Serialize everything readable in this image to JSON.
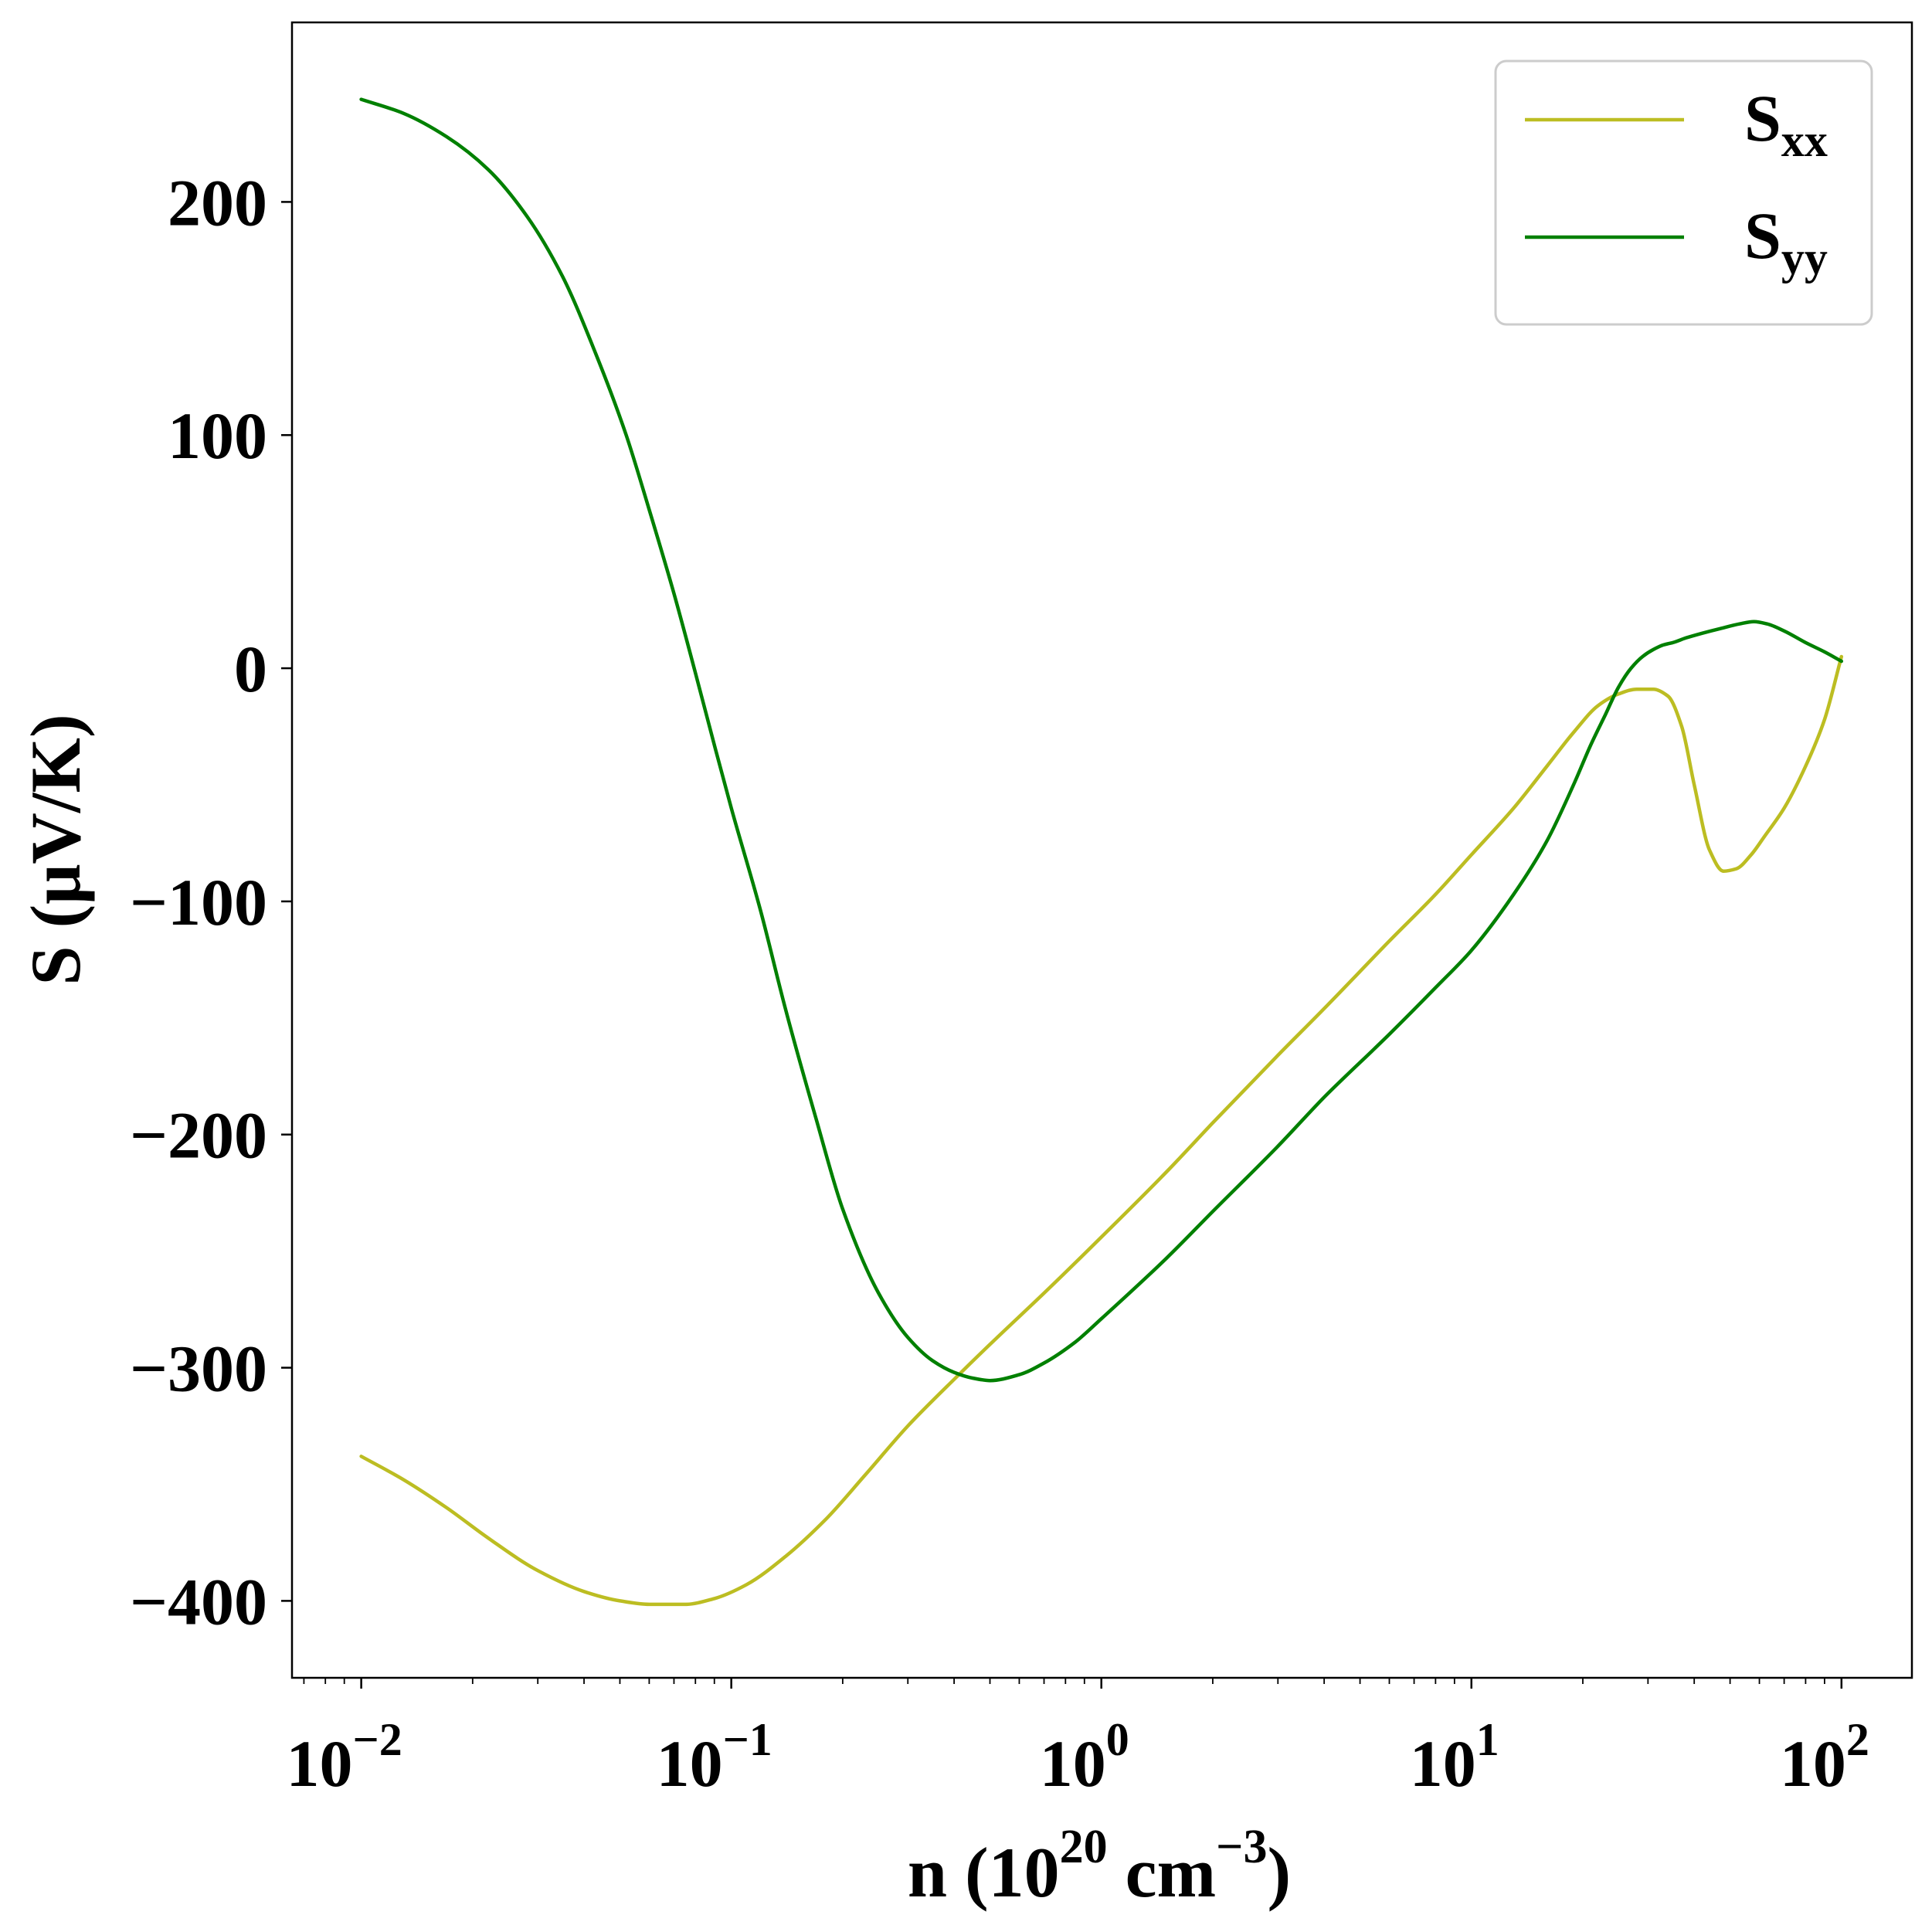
{
  "chart_data": {
    "type": "line",
    "xlabel": {
      "main": "n (10",
      "sup": "20",
      "mid": " cm",
      "sup2": "−3",
      "end": ")"
    },
    "ylabel": "S (μV/K)",
    "xscale": "log",
    "xlim": [
      0.0065,
      155
    ],
    "ylim": [
      -433,
      277
    ],
    "x_ticks": [
      {
        "value": 0.01,
        "base": "10",
        "exp": "−2"
      },
      {
        "value": 0.1,
        "base": "10",
        "exp": "−1"
      },
      {
        "value": 1,
        "base": "10",
        "exp": "0"
      },
      {
        "value": 10,
        "base": "10",
        "exp": "1"
      },
      {
        "value": 100,
        "base": "10",
        "exp": "2"
      }
    ],
    "y_ticks": [
      {
        "value": 200,
        "label": "200"
      },
      {
        "value": 100,
        "label": "100"
      },
      {
        "value": 0,
        "label": "0"
      },
      {
        "value": -100,
        "label": "−100"
      },
      {
        "value": -200,
        "label": "−200"
      },
      {
        "value": -300,
        "label": "−300"
      },
      {
        "value": -400,
        "label": "−400"
      }
    ],
    "legend_position": "top-right",
    "grid": false,
    "series": [
      {
        "name": "S",
        "subscript": "xx",
        "color": "#bcbd22",
        "points": [
          [
            0.01,
            -338
          ],
          [
            0.013,
            -348
          ],
          [
            0.017,
            -360
          ],
          [
            0.022,
            -373
          ],
          [
            0.03,
            -387
          ],
          [
            0.04,
            -396
          ],
          [
            0.05,
            -400
          ],
          [
            0.06,
            -401.5
          ],
          [
            0.075,
            -401.5
          ],
          [
            0.09,
            -399
          ],
          [
            0.11,
            -393
          ],
          [
            0.14,
            -381
          ],
          [
            0.18,
            -365
          ],
          [
            0.23,
            -346
          ],
          [
            0.3,
            -325
          ],
          [
            0.4,
            -305
          ],
          [
            0.5,
            -290
          ],
          [
            0.7,
            -268
          ],
          [
            1.0,
            -244
          ],
          [
            1.5,
            -216
          ],
          [
            2.0,
            -195
          ],
          [
            3.0,
            -166
          ],
          [
            4.0,
            -146
          ],
          [
            6.0,
            -117
          ],
          [
            8.0,
            -97
          ],
          [
            10.0,
            -80
          ],
          [
            13.0,
            -60
          ],
          [
            16.0,
            -42
          ],
          [
            19.0,
            -27
          ],
          [
            22.0,
            -16
          ],
          [
            25.0,
            -11
          ],
          [
            28.0,
            -9
          ],
          [
            31.0,
            -9
          ],
          [
            34.0,
            -12
          ],
          [
            37.0,
            -25
          ],
          [
            40.0,
            -50
          ],
          [
            44.0,
            -78
          ],
          [
            48.0,
            -87
          ],
          [
            52.0,
            -86
          ],
          [
            57.0,
            -80
          ],
          [
            62.0,
            -72
          ],
          [
            70.0,
            -60
          ],
          [
            80.0,
            -42
          ],
          [
            90.0,
            -22
          ],
          [
            100.0,
            5
          ]
        ]
      },
      {
        "name": "S",
        "subscript": "yy",
        "color": "#008000",
        "points": [
          [
            0.01,
            244
          ],
          [
            0.013,
            238
          ],
          [
            0.017,
            228
          ],
          [
            0.022,
            214
          ],
          [
            0.028,
            194
          ],
          [
            0.035,
            168
          ],
          [
            0.043,
            135
          ],
          [
            0.052,
            100
          ],
          [
            0.06,
            68
          ],
          [
            0.07,
            32
          ],
          [
            0.08,
            -2
          ],
          [
            0.09,
            -33
          ],
          [
            0.1,
            -60
          ],
          [
            0.12,
            -104
          ],
          [
            0.14,
            -146
          ],
          [
            0.17,
            -194
          ],
          [
            0.2,
            -232
          ],
          [
            0.25,
            -268
          ],
          [
            0.3,
            -287
          ],
          [
            0.35,
            -297
          ],
          [
            0.4,
            -302
          ],
          [
            0.45,
            -304.5
          ],
          [
            0.5,
            -305.5
          ],
          [
            0.6,
            -303
          ],
          [
            0.7,
            -298
          ],
          [
            0.85,
            -289
          ],
          [
            1.0,
            -279
          ],
          [
            1.5,
            -253
          ],
          [
            2.0,
            -233
          ],
          [
            3.0,
            -205
          ],
          [
            4.0,
            -184
          ],
          [
            6.0,
            -157
          ],
          [
            8.0,
            -137
          ],
          [
            10.0,
            -121
          ],
          [
            13.0,
            -97
          ],
          [
            16.0,
            -74
          ],
          [
            19.0,
            -49
          ],
          [
            21.0,
            -33
          ],
          [
            23.0,
            -20
          ],
          [
            25.0,
            -8
          ],
          [
            27.0,
            0
          ],
          [
            29.0,
            5
          ],
          [
            31.0,
            8
          ],
          [
            33.0,
            10
          ],
          [
            35.0,
            11
          ],
          [
            38.0,
            13
          ],
          [
            42.0,
            15
          ],
          [
            47.0,
            17
          ],
          [
            53.0,
            19
          ],
          [
            58.0,
            20
          ],
          [
            63.0,
            19
          ],
          [
            70.0,
            16
          ],
          [
            80.0,
            11
          ],
          [
            90.0,
            7
          ],
          [
            100.0,
            3
          ]
        ]
      }
    ]
  }
}
